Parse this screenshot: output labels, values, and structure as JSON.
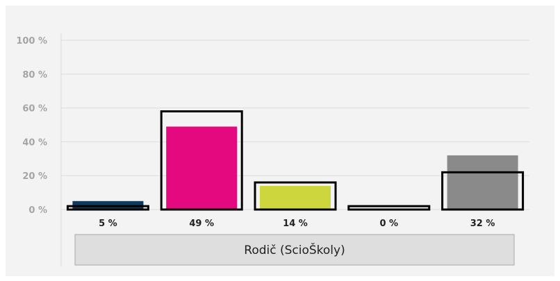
{
  "chart_data": {
    "type": "bar",
    "title": "",
    "xlabel": "",
    "ylabel": "",
    "ylim": [
      0,
      100
    ],
    "y_ticks": [
      0,
      20,
      40,
      60,
      80,
      100
    ],
    "y_tick_labels": [
      "0 %",
      "20 %",
      "40 %",
      "60 %",
      "80 %",
      "100 %"
    ],
    "grid": true,
    "group_label": "Rodič (ScioŠkoly)",
    "series": [
      {
        "values": [
          5,
          49,
          14,
          0,
          32
        ],
        "value_labels": [
          "5 %",
          "49 %",
          "14 %",
          "0 %",
          "32 %"
        ],
        "colors": [
          "#0e3a5e",
          "#e5097f",
          "#cdd63c",
          "#cccccc",
          "#8a8a8a"
        ]
      },
      {
        "style": "outline",
        "values": [
          2,
          58,
          16,
          2,
          22
        ],
        "color": "#000000"
      }
    ]
  }
}
